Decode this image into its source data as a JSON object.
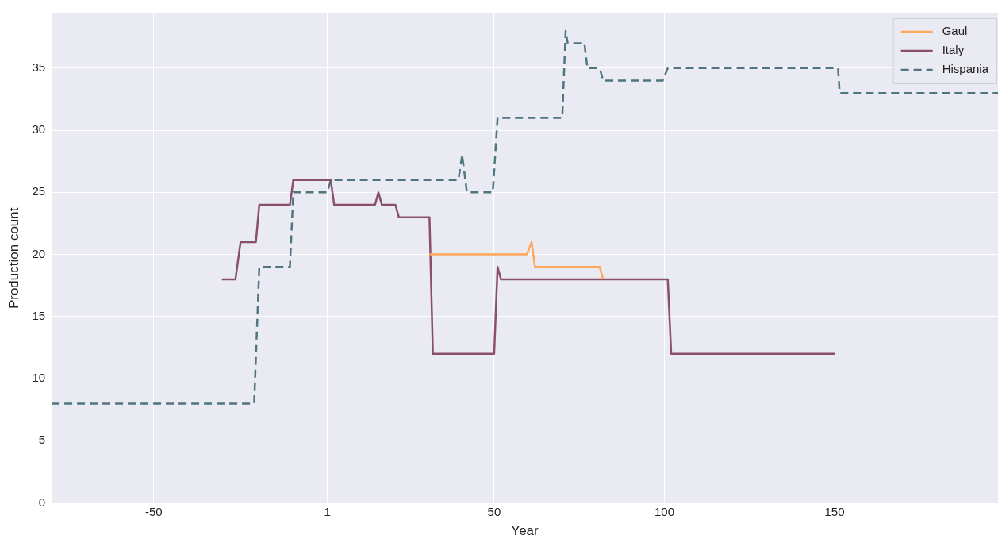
{
  "chart_data": {
    "type": "line",
    "xlabel": "Year",
    "ylabel": "Production count",
    "xlim": [
      -80,
      198
    ],
    "xticks": [
      -50,
      1,
      50,
      100,
      150
    ],
    "ylim": [
      0,
      39.4
    ],
    "yticks": [
      0,
      5,
      10,
      15,
      20,
      25,
      30,
      35
    ],
    "grid": true,
    "legend": "top right",
    "marker": "none",
    "series": [
      {
        "name": "Gaul",
        "color": "#ffa75a",
        "line_style": "solid",
        "x": [
          31,
          59.6,
          61,
          62,
          81,
          82
        ],
        "values": [
          20,
          20,
          21,
          19,
          19,
          18
        ]
      },
      {
        "name": "Italy",
        "color": "#8a4f6a",
        "line_style": "solid",
        "x": [
          -30,
          -26,
          -24.5,
          -20,
          -19,
          -10,
          -9,
          2,
          3,
          15,
          16,
          17,
          21,
          22,
          31,
          32,
          50,
          51,
          52,
          101,
          102,
          150
        ],
        "values": [
          18,
          18,
          21,
          21,
          24,
          24,
          26,
          26,
          24,
          24,
          25,
          24,
          24,
          23,
          23,
          12,
          12,
          19,
          18,
          18,
          12,
          12
        ]
      },
      {
        "name": "Hispania",
        "color": "#4f7580",
        "line_style": "dashed",
        "x": [
          -80,
          -20.5,
          -19,
          -10,
          -9,
          1,
          2,
          39.5,
          40.6,
          42,
          49.6,
          51,
          70,
          71,
          71.6,
          76.5,
          77.4,
          81,
          82,
          99.5,
          101,
          151,
          151.5,
          198
        ],
        "values": [
          8,
          8,
          19,
          19,
          25,
          25,
          26,
          26,
          28,
          25,
          25,
          31,
          31,
          38,
          37,
          37,
          35,
          35,
          34,
          34,
          35,
          35,
          33,
          33
        ]
      }
    ]
  }
}
